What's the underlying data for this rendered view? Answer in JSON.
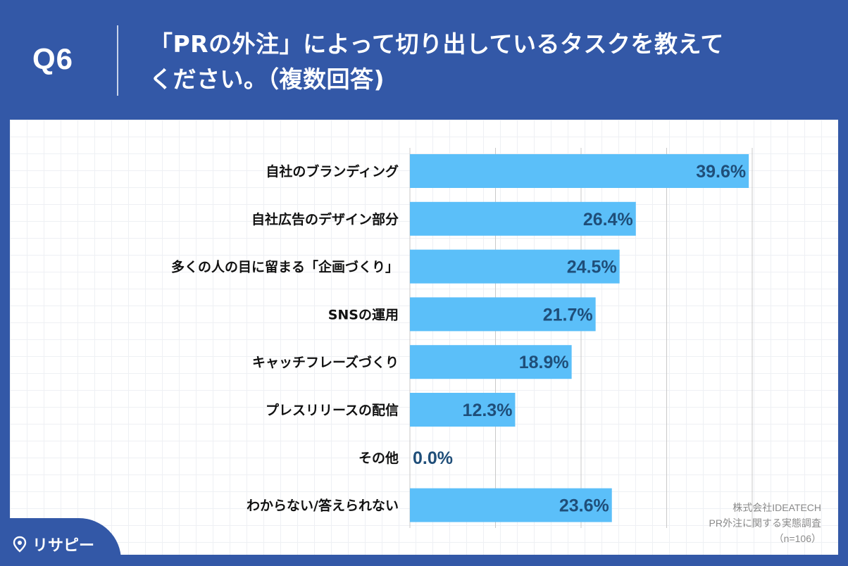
{
  "header": {
    "q_label": "Q6",
    "title_line1": "「PRの外注」によって切り出しているタスクを教えて",
    "title_line2": "ください。（複数回答)"
  },
  "source": {
    "line1": "株式会社IDEATECH",
    "line2": "PR外注に関する実態調査",
    "line3": "（n=106）"
  },
  "logo": {
    "text": "リサピー"
  },
  "colors": {
    "header_bg": "#3358a7",
    "bar": "#5bbff9",
    "value_text": "#1f4e79",
    "label_text": "#111111"
  },
  "chart_data": {
    "type": "bar",
    "orientation": "horizontal",
    "categories": [
      "自社のブランディング",
      "自社広告のデザイン部分",
      "多くの人の目に留まる「企画づくり」",
      "SNSの運用",
      "キャッチフレーズづくり",
      "プレスリリースの配信",
      "その他",
      "わからない/答えられない"
    ],
    "values": [
      39.6,
      26.4,
      24.5,
      21.7,
      18.9,
      12.3,
      0.0,
      23.6
    ],
    "value_labels": [
      "39.6%",
      "26.4%",
      "24.5%",
      "21.7%",
      "18.9%",
      "12.3%",
      "0.0%",
      "23.6%"
    ],
    "xlim": [
      0,
      40
    ],
    "gridlines": [
      0,
      10,
      20,
      30,
      40
    ],
    "grid": true
  }
}
